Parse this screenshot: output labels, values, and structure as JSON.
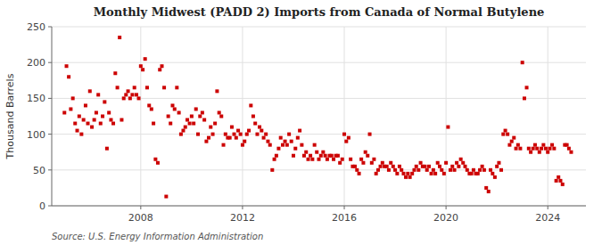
{
  "chart_data": {
    "type": "scatter",
    "title": "Monthly Midwest (PADD 2) Imports from Canada of Normal Butylene",
    "ylabel": "Thousand Barrels",
    "source": "Source: U.S. Energy Information Administration",
    "color": "#cc0000",
    "marker": "square",
    "grid": true,
    "xlim": [
      2004.5,
      2025.5
    ],
    "xticks": [
      2008,
      2012,
      2016,
      2020,
      2024
    ],
    "ylim": [
      0,
      250
    ],
    "yticks": [
      0,
      50,
      100,
      150,
      200,
      250
    ],
    "x": [
      2005.0,
      2005.08,
      2005.17,
      2005.25,
      2005.33,
      2005.42,
      2005.5,
      2005.58,
      2005.67,
      2005.75,
      2005.83,
      2005.92,
      2006.0,
      2006.08,
      2006.17,
      2006.25,
      2006.33,
      2006.42,
      2006.5,
      2006.58,
      2006.67,
      2006.75,
      2006.83,
      2006.92,
      2007.0,
      2007.08,
      2007.17,
      2007.25,
      2007.33,
      2007.42,
      2007.5,
      2007.58,
      2007.67,
      2007.75,
      2007.83,
      2007.92,
      2008.0,
      2008.08,
      2008.17,
      2008.25,
      2008.33,
      2008.42,
      2008.5,
      2008.58,
      2008.67,
      2008.75,
      2008.83,
      2008.92,
      2009.0,
      2009.08,
      2009.17,
      2009.25,
      2009.33,
      2009.42,
      2009.5,
      2009.58,
      2009.67,
      2009.75,
      2009.83,
      2009.92,
      2010.0,
      2010.08,
      2010.17,
      2010.25,
      2010.33,
      2010.42,
      2010.5,
      2010.58,
      2010.67,
      2010.75,
      2010.83,
      2010.92,
      2011.0,
      2011.08,
      2011.17,
      2011.25,
      2011.33,
      2011.42,
      2011.5,
      2011.58,
      2011.67,
      2011.75,
      2011.83,
      2011.92,
      2012.0,
      2012.08,
      2012.17,
      2012.25,
      2012.33,
      2012.42,
      2012.5,
      2012.58,
      2012.67,
      2012.75,
      2012.83,
      2012.92,
      2013.0,
      2013.08,
      2013.17,
      2013.25,
      2013.33,
      2013.42,
      2013.5,
      2013.58,
      2013.67,
      2013.75,
      2013.83,
      2013.92,
      2014.0,
      2014.08,
      2014.17,
      2014.25,
      2014.33,
      2014.42,
      2014.5,
      2014.58,
      2014.67,
      2014.75,
      2014.83,
      2014.92,
      2015.0,
      2015.08,
      2015.17,
      2015.25,
      2015.33,
      2015.42,
      2015.5,
      2015.58,
      2015.67,
      2015.75,
      2015.83,
      2015.92,
      2016.0,
      2016.08,
      2016.17,
      2016.25,
      2016.33,
      2016.42,
      2016.5,
      2016.58,
      2016.67,
      2016.75,
      2016.83,
      2016.92,
      2017.0,
      2017.08,
      2017.17,
      2017.25,
      2017.33,
      2017.42,
      2017.5,
      2017.58,
      2017.67,
      2017.75,
      2017.83,
      2017.92,
      2018.0,
      2018.08,
      2018.17,
      2018.25,
      2018.33,
      2018.42,
      2018.5,
      2018.58,
      2018.67,
      2018.75,
      2018.83,
      2018.92,
      2019.0,
      2019.08,
      2019.17,
      2019.25,
      2019.33,
      2019.42,
      2019.5,
      2019.58,
      2019.67,
      2019.75,
      2019.83,
      2019.92,
      2020.0,
      2020.08,
      2020.17,
      2020.25,
      2020.33,
      2020.42,
      2020.5,
      2020.58,
      2020.67,
      2020.75,
      2020.83,
      2020.92,
      2021.0,
      2021.08,
      2021.17,
      2021.25,
      2021.33,
      2021.42,
      2021.5,
      2021.58,
      2021.67,
      2021.75,
      2021.83,
      2021.92,
      2022.0,
      2022.08,
      2022.17,
      2022.25,
      2022.33,
      2022.42,
      2022.5,
      2022.58,
      2022.67,
      2022.75,
      2022.83,
      2022.92,
      2023.0,
      2023.08,
      2023.17,
      2023.25,
      2023.33,
      2023.42,
      2023.5,
      2023.58,
      2023.67,
      2023.75,
      2023.83,
      2023.92,
      2024.0,
      2024.08,
      2024.17,
      2024.25,
      2024.33,
      2024.42,
      2024.5,
      2024.58,
      2024.67,
      2024.75,
      2024.83,
      2024.92
    ],
    "values": [
      130,
      195,
      180,
      135,
      150,
      115,
      105,
      125,
      100,
      120,
      140,
      115,
      160,
      110,
      120,
      130,
      155,
      115,
      125,
      145,
      80,
      130,
      120,
      115,
      185,
      165,
      235,
      120,
      150,
      155,
      160,
      150,
      155,
      165,
      155,
      150,
      195,
      190,
      205,
      165,
      140,
      135,
      115,
      65,
      60,
      190,
      195,
      165,
      13,
      125,
      115,
      140,
      135,
      165,
      130,
      100,
      105,
      110,
      120,
      115,
      125,
      115,
      135,
      100,
      125,
      130,
      120,
      90,
      95,
      110,
      100,
      115,
      160,
      130,
      125,
      85,
      100,
      95,
      95,
      110,
      100,
      95,
      105,
      100,
      85,
      90,
      100,
      105,
      140,
      125,
      115,
      100,
      110,
      105,
      95,
      100,
      90,
      85,
      50,
      65,
      70,
      80,
      95,
      85,
      90,
      85,
      100,
      90,
      70,
      80,
      95,
      105,
      85,
      70,
      75,
      65,
      70,
      65,
      85,
      75,
      65,
      70,
      75,
      70,
      65,
      70,
      70,
      65,
      70,
      70,
      60,
      65,
      100,
      90,
      95,
      65,
      55,
      55,
      50,
      45,
      65,
      60,
      75,
      70,
      100,
      60,
      65,
      45,
      50,
      55,
      60,
      55,
      55,
      50,
      60,
      55,
      50,
      45,
      55,
      50,
      45,
      40,
      45,
      40,
      45,
      50,
      55,
      50,
      60,
      55,
      55,
      50,
      55,
      45,
      50,
      45,
      60,
      55,
      50,
      45,
      60,
      110,
      50,
      55,
      50,
      60,
      55,
      65,
      60,
      55,
      50,
      45,
      45,
      50,
      45,
      45,
      50,
      55,
      50,
      25,
      20,
      50,
      45,
      40,
      55,
      60,
      50,
      100,
      105,
      100,
      85,
      90,
      95,
      80,
      85,
      80,
      200,
      150,
      165,
      80,
      75,
      80,
      85,
      80,
      75,
      80,
      85,
      80,
      75,
      80,
      85,
      80,
      35,
      40,
      35,
      30,
      85,
      85,
      80,
      75
    ]
  }
}
